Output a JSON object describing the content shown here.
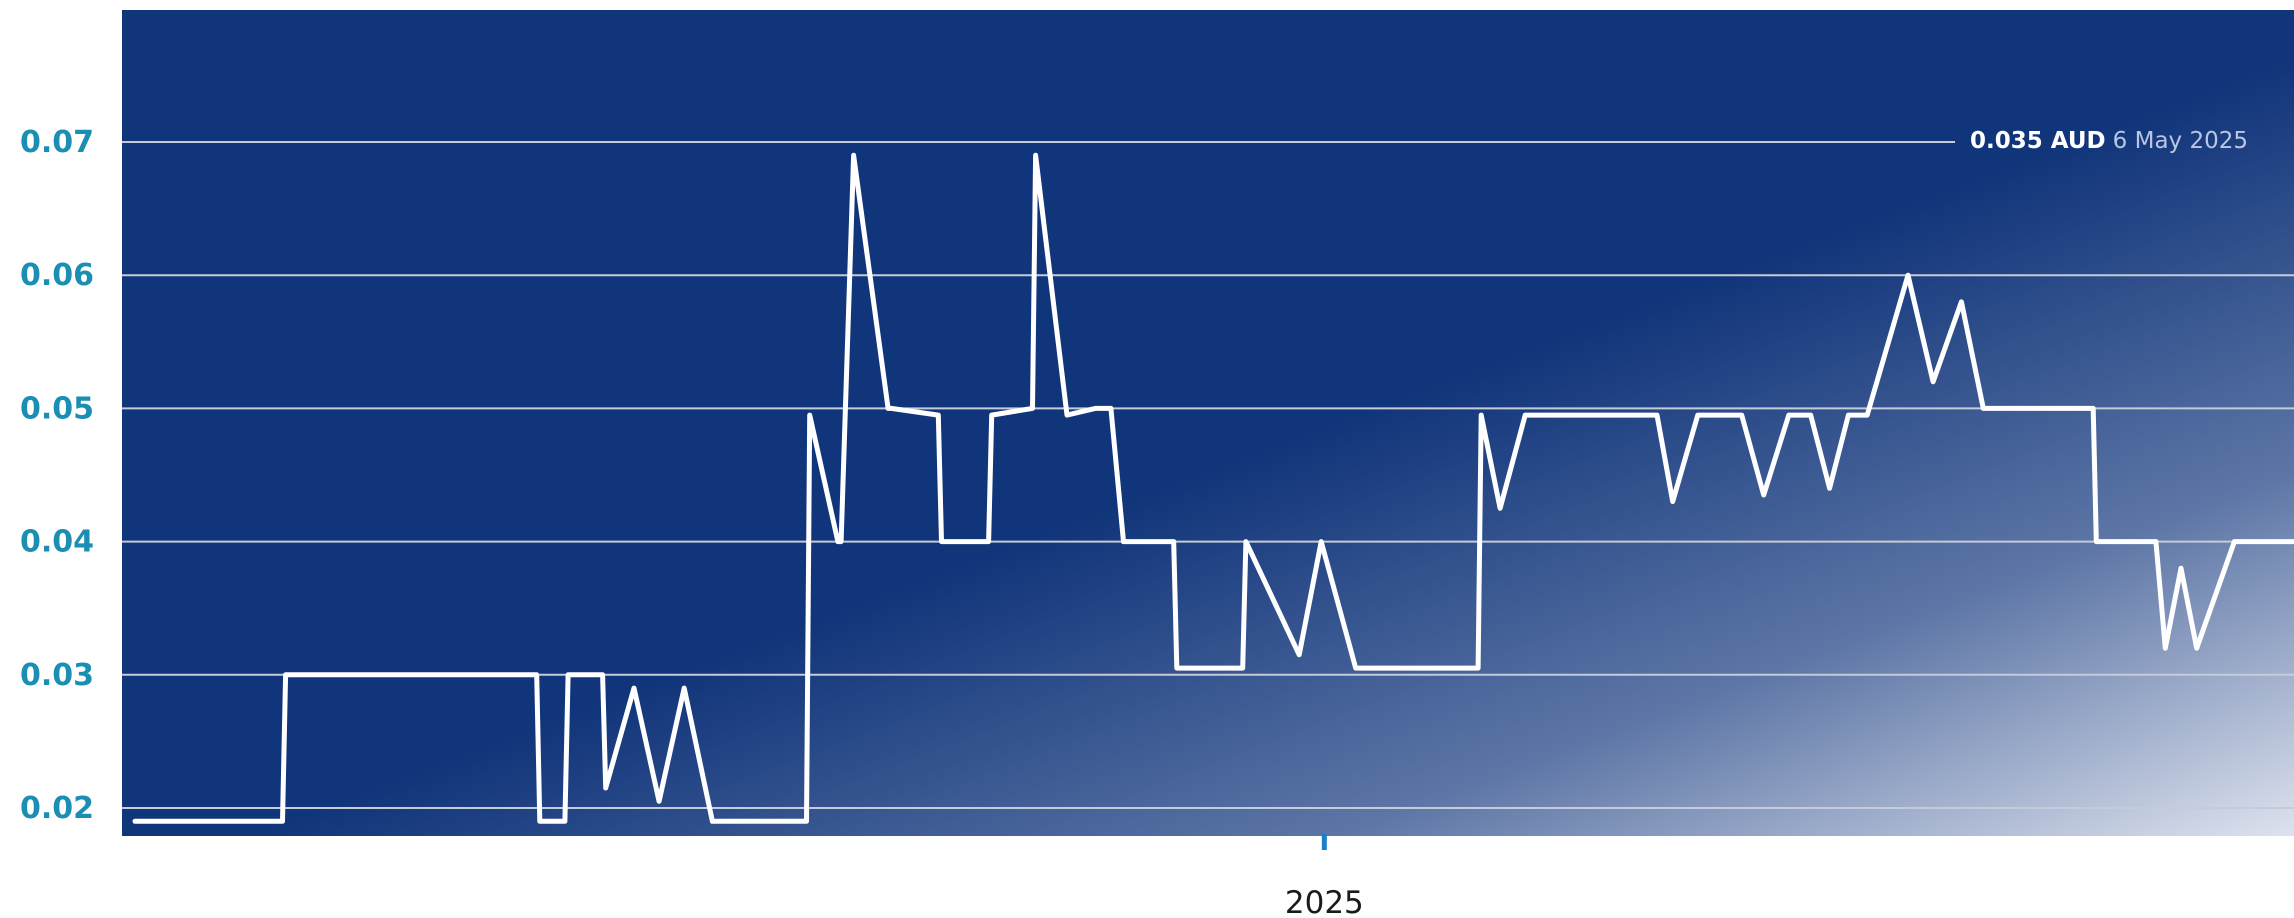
{
  "chart_data": {
    "type": "line",
    "title": "",
    "xlabel": "",
    "ylabel": "",
    "ylim": [
      0.0185,
      0.0795
    ],
    "yticks": [
      "0.02",
      "0.03",
      "0.04",
      "0.05",
      "0.06",
      "0.07"
    ],
    "xticks": [
      {
        "label": "2025",
        "x": 379
      }
    ],
    "grid": true,
    "legend": "none",
    "x_unit": "trading-day index",
    "series": [
      {
        "name": "",
        "x": [
          0,
          47,
          48,
          128,
          129,
          137,
          138,
          149,
          150,
          159,
          167,
          175,
          184,
          188,
          214,
          215,
          224,
          225,
          229,
          240,
          241,
          256,
          257,
          272,
          273,
          286,
          287,
          297,
          306,
          311,
          315,
          331,
          332,
          353,
          354,
          371,
          378,
          389,
          407,
          408,
          428,
          429,
          435,
          443,
          485,
          490,
          498,
          512,
          519,
          527,
          534,
          540,
          546,
          552,
          565,
          573,
          582,
          589,
          597,
          606,
          624,
          625,
          644,
          647,
          652,
          657,
          669,
          688
        ],
        "values": [
          0.019,
          0.019,
          0.03,
          0.03,
          0.019,
          0.019,
          0.03,
          0.03,
          0.0215,
          0.029,
          0.0205,
          0.029,
          0.019,
          0.019,
          0.019,
          0.0495,
          0.04,
          0.04,
          0.069,
          0.05,
          0.05,
          0.0495,
          0.04,
          0.04,
          0.0495,
          0.05,
          0.069,
          0.0495,
          0.05,
          0.05,
          0.04,
          0.04,
          0.0305,
          0.0305,
          0.04,
          0.0315,
          0.04,
          0.0305,
          0.0305,
          0.0305,
          0.0305,
          0.0495,
          0.0425,
          0.0495,
          0.0495,
          0.043,
          0.0495,
          0.0495,
          0.0435,
          0.0495,
          0.0495,
          0.044,
          0.0495,
          0.0495,
          0.06,
          0.052,
          0.058,
          0.05,
          0.05,
          0.05,
          0.05,
          0.04,
          0.04,
          0.032,
          0.038,
          0.032,
          0.04,
          0.04
        ]
      }
    ]
  },
  "tooltip": {
    "price": "0.035 AUD",
    "date": "6 May 2025"
  },
  "colors": {
    "plot_bg": "#11357a",
    "plot_bg_light": "#d8deec",
    "line": "#ffffff",
    "grid": "#c5cbd8",
    "ytick": "#1a8eb3",
    "xtick_marker": "#1f7fc4"
  }
}
